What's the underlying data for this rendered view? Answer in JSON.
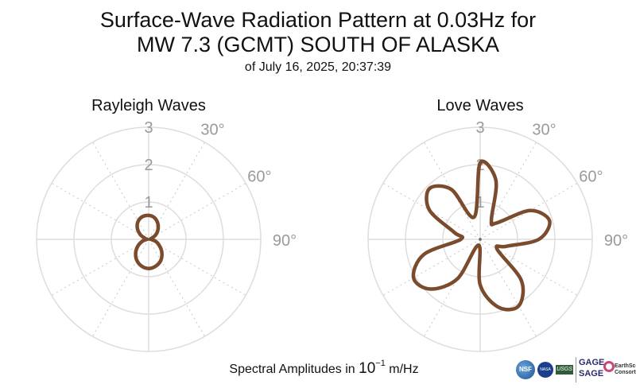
{
  "title_line1": "Surface-Wave Radiation Pattern at 0.03Hz for",
  "title_line2": "MW 7.3 (GCMT) SOUTH OF ALASKA",
  "subtitle": "of July 16, 2025, 20:37:39",
  "footer": {
    "prefix": "Spectral Amplitudes in ",
    "base": "10",
    "exponent": "−1",
    "unit": " m/Hz"
  },
  "colors": {
    "pattern": "#7b4b2e",
    "grid": "#dddddd",
    "angular_grid": "#cfcfcf",
    "tick_text": "#9a9a9a"
  },
  "logos": {
    "nsf": "NSF",
    "nasa": "NASA",
    "usgs": "USGS",
    "gage": "GAGE",
    "sage": "SAGE",
    "earthscope": "EarthScope Consortium"
  },
  "chart_data": [
    {
      "type": "polar-line",
      "title": "Rayleigh Waves",
      "r_range": [
        0,
        3
      ],
      "r_ticks": [
        "1",
        "2",
        "3"
      ],
      "theta_ticks": [
        "30°",
        "60°",
        "90°"
      ],
      "theta_direction": "clockwise from north",
      "series": [
        {
          "theta_deg": [
            0,
            15,
            30,
            45,
            60,
            75,
            90,
            105,
            120,
            135,
            150,
            165,
            180,
            195,
            210,
            225,
            240,
            255,
            270,
            285,
            300,
            315,
            330,
            345
          ],
          "r": [
            0.64,
            0.6,
            0.49,
            0.35,
            0.2,
            0.06,
            0.06,
            0.19,
            0.33,
            0.5,
            0.65,
            0.74,
            0.78,
            0.74,
            0.64,
            0.49,
            0.32,
            0.16,
            0.05,
            0.1,
            0.26,
            0.43,
            0.56,
            0.63
          ]
        }
      ]
    },
    {
      "type": "polar-line",
      "title": "Love Waves",
      "r_range": [
        0,
        3
      ],
      "r_ticks": [
        "1",
        "2",
        "3"
      ],
      "theta_ticks": [
        "30°",
        "60°",
        "90°"
      ],
      "theta_direction": "clockwise from north",
      "series": [
        {
          "theta_deg": [
            0,
            15,
            30,
            45,
            60,
            75,
            90,
            105,
            120,
            135,
            150,
            165,
            180,
            195,
            210,
            225,
            240,
            255,
            270,
            285,
            300,
            315,
            330,
            345
          ],
          "r": [
            2.05,
            1.63,
            0.6,
            0.62,
            1.54,
            1.92,
            1.57,
            0.72,
            0.52,
            1.56,
            2.06,
            1.88,
            1.22,
            0.16,
            1.22,
            1.88,
            2.06,
            1.56,
            0.52,
            0.72,
            1.57,
            1.92,
            1.54,
            0.62
          ]
        }
      ]
    }
  ]
}
